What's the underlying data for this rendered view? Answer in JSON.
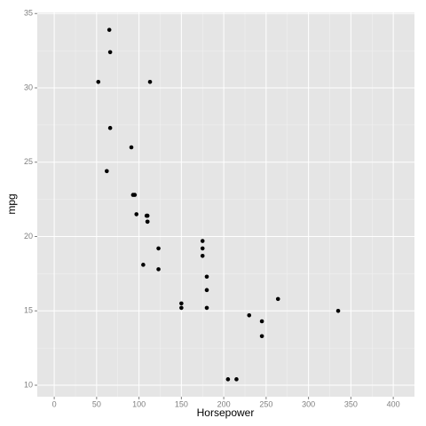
{
  "chart_data": {
    "type": "scatter",
    "x_label": "Horsepower",
    "y_label": "mpg",
    "x": [
      110,
      110,
      93,
      110,
      175,
      105,
      245,
      62,
      95,
      123,
      123,
      180,
      180,
      180,
      205,
      215,
      230,
      66,
      52,
      65,
      97,
      150,
      150,
      245,
      175,
      66,
      91,
      113,
      264,
      175,
      335,
      109
    ],
    "values": [
      21.0,
      21.0,
      22.8,
      21.4,
      18.7,
      18.1,
      14.3,
      24.4,
      22.8,
      19.2,
      17.8,
      16.4,
      17.3,
      15.2,
      10.4,
      10.4,
      14.7,
      32.4,
      30.4,
      33.9,
      21.5,
      15.5,
      15.2,
      13.3,
      19.2,
      27.3,
      26.0,
      30.4,
      15.8,
      19.7,
      15.0,
      21.4
    ],
    "color": "#000000",
    "xlim": [
      -20,
      425
    ],
    "xticks": [
      0,
      50,
      100,
      150,
      200,
      250,
      300,
      350,
      400
    ],
    "ylim": [
      9.225,
      35.075
    ],
    "yticks": [
      10,
      15,
      20,
      25,
      30,
      35
    ],
    "grid": true
  }
}
